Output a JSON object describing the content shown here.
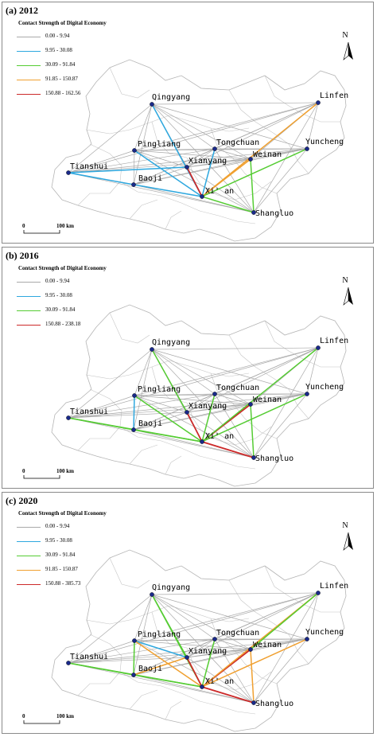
{
  "legend_title": "Contact Strength of Digital Economy",
  "cities": [
    "Qingyang",
    "Linfen",
    "Pingliang",
    "Tongchuan",
    "Weinan",
    "Yuncheng",
    "Tianshui",
    "Xianyang",
    "Baoji",
    "Xi'an",
    "Shangluo"
  ],
  "city_labels": {
    "Qingyang": "Qingyang",
    "Linfen": "Linfen",
    "Pingliang": "Pingliang",
    "Tongchuan": "Tongchuan",
    "Weinan": "Weinan",
    "Yuncheng": "Yuncheng",
    "Tianshui": "Tianshui",
    "Xianyang": "Xianyang",
    "Baoji": "Baoji",
    "Xi'an": "Xi' an",
    "Shangluo": "Shangluo"
  },
  "scale": {
    "zero": "0",
    "distance": "100 km"
  },
  "north": "N",
  "class_colors": {
    "gray": "#a9a9a9",
    "blue": "#2ea8df",
    "green": "#55cc33",
    "orange": "#f0a030",
    "red": "#cc2a2a"
  },
  "panels": [
    {
      "title": "(a) 2012",
      "legend": [
        {
          "range": "0.00 - 9.94",
          "color": "gray"
        },
        {
          "range": "9.95 - 30.08",
          "color": "blue"
        },
        {
          "range": "30.09 - 91.84",
          "color": "green"
        },
        {
          "range": "91.85 - 150.87",
          "color": "orange"
        },
        {
          "range": "150.88 - 162.56",
          "color": "red"
        }
      ],
      "links": [
        [
          "Qingyang",
          "Xi'an",
          "blue"
        ],
        [
          "Tianshui",
          "Baoji",
          "blue"
        ],
        [
          "Pingliang",
          "Xi'an",
          "blue"
        ],
        [
          "Baoji",
          "Xi'an",
          "blue"
        ],
        [
          "Tianshui",
          "Xianyang",
          "blue"
        ],
        [
          "Tongchuan",
          "Xi'an",
          "blue"
        ],
        [
          "Xianyang",
          "Xi'an",
          "red"
        ],
        [
          "Weinan",
          "Xi'an",
          "orange"
        ],
        [
          "Linfen",
          "Xi'an",
          "orange"
        ],
        [
          "Yuncheng",
          "Xi'an",
          "green"
        ],
        [
          "Xi'an",
          "Shangluo",
          "green"
        ],
        [
          "Weinan",
          "Shangluo",
          "green"
        ]
      ]
    },
    {
      "title": "(b) 2016",
      "legend": [
        {
          "range": "0.00 - 9.94",
          "color": "gray"
        },
        {
          "range": "9.95 - 30.08",
          "color": "blue"
        },
        {
          "range": "30.09 - 91.84",
          "color": "green"
        },
        {
          "range": "150.88 - 238.18",
          "color": "red"
        }
      ],
      "links": [
        [
          "Qingyang",
          "Xianyang",
          "green"
        ],
        [
          "Pingliang",
          "Baoji",
          "blue"
        ],
        [
          "Pingliang",
          "Xi'an",
          "green"
        ],
        [
          "Tianshui",
          "Baoji",
          "green"
        ],
        [
          "Baoji",
          "Xi'an",
          "green"
        ],
        [
          "Tianshui",
          "Xi'an",
          "green"
        ],
        [
          "Xianyang",
          "Xi'an",
          "red"
        ],
        [
          "Tongchuan",
          "Xi'an",
          "green"
        ],
        [
          "Weinan",
          "Xi'an",
          "red"
        ],
        [
          "Linfen",
          "Xi'an",
          "green"
        ],
        [
          "Yuncheng",
          "Xi'an",
          "green"
        ],
        [
          "Xi'an",
          "Shangluo",
          "red"
        ],
        [
          "Weinan",
          "Shangluo",
          "green"
        ]
      ]
    },
    {
      "title": "(c) 2020",
      "legend": [
        {
          "range": "0.00 - 9.94",
          "color": "gray"
        },
        {
          "range": "9.95 - 30.08",
          "color": "blue"
        },
        {
          "range": "30.09 - 91.84",
          "color": "green"
        },
        {
          "range": "91.85 - 150.87",
          "color": "orange"
        },
        {
          "range": "150.88 - 385.73",
          "color": "red"
        }
      ],
      "links": [
        [
          "Qingyang",
          "Xianyang",
          "green"
        ],
        [
          "Qingyang",
          "Xi'an",
          "green"
        ],
        [
          "Pingliang",
          "Baoji",
          "green"
        ],
        [
          "Pingliang",
          "Xianyang",
          "blue"
        ],
        [
          "Pingliang",
          "Xi'an",
          "orange"
        ],
        [
          "Tianshui",
          "Baoji",
          "green"
        ],
        [
          "Tianshui",
          "Xi'an",
          "green"
        ],
        [
          "Baoji",
          "Xi'an",
          "green"
        ],
        [
          "Baoji",
          "Xianyang",
          "orange"
        ],
        [
          "Tongchuan",
          "Xi'an",
          "green"
        ],
        [
          "Xianyang",
          "Xi'an",
          "red"
        ],
        [
          "Weinan",
          "Xi'an",
          "red"
        ],
        [
          "Linfen",
          "Xi'an",
          "orange"
        ],
        [
          "Linfen",
          "Weinan",
          "green"
        ],
        [
          "Yuncheng",
          "Xi'an",
          "orange"
        ],
        [
          "Xi'an",
          "Shangluo",
          "red"
        ],
        [
          "Weinan",
          "Shangluo",
          "orange"
        ]
      ]
    }
  ]
}
